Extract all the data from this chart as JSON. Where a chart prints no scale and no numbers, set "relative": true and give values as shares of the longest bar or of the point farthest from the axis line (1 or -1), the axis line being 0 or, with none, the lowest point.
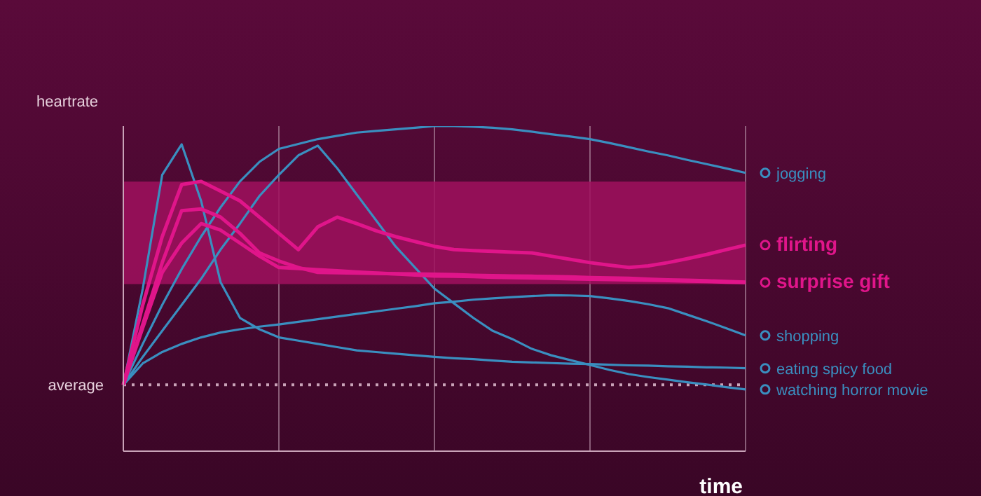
{
  "chart_data": {
    "type": "line",
    "relative": true,
    "xlabel": "time",
    "ylabel": "heartrate",
    "categories": [
      null,
      null,
      null,
      null,
      null,
      null,
      null,
      null,
      null,
      null,
      null,
      null,
      null,
      null,
      null,
      null,
      null,
      null,
      null,
      null,
      null,
      null,
      null,
      null,
      null,
      null,
      null,
      null,
      null,
      null,
      null,
      null,
      null
    ],
    "grid": "x",
    "legend": "right",
    "marker": "none",
    "ref_lines": [
      {
        "axis": "y",
        "value": 0.204,
        "label": "average",
        "color": "#c9a3b8",
        "line_style": "dotted"
      }
    ],
    "bands": [
      {
        "axis": "y",
        "from": 0.514,
        "to": 0.829,
        "color": "#a0105e"
      }
    ],
    "series": [
      {
        "name": "jogging",
        "color": "#3a8fc0",
        "values": [
          0.204,
          0.33,
          0.45,
          0.56,
          0.66,
          0.75,
          0.83,
          0.89,
          0.93,
          0.945,
          0.96,
          0.97,
          0.98,
          0.985,
          0.99,
          0.995,
          1,
          1,
          0.998,
          0.995,
          0.99,
          0.983,
          0.975,
          0.968,
          0.96,
          0.948,
          0.935,
          0.922,
          0.91,
          0.896,
          0.883,
          0.87,
          0.856
        ]
      },
      {
        "name": "shopping",
        "color": "#3a8fc0",
        "values": [
          0.204,
          0.27,
          0.305,
          0.33,
          0.35,
          0.365,
          0.375,
          0.383,
          0.39,
          0.398,
          0.406,
          0.414,
          0.422,
          0.43,
          0.438,
          0.446,
          0.455,
          0.46,
          0.466,
          0.47,
          0.474,
          0.477,
          0.48,
          0.479,
          0.477,
          0.47,
          0.462,
          0.452,
          0.44,
          0.42,
          0.4,
          0.378,
          0.356
        ]
      },
      {
        "name": "eating spicy food",
        "color": "#3a8fc0",
        "values": [
          0.204,
          0.5,
          0.85,
          0.944,
          0.77,
          0.52,
          0.41,
          0.375,
          0.35,
          0.34,
          0.33,
          0.32,
          0.31,
          0.305,
          0.3,
          0.295,
          0.29,
          0.286,
          0.283,
          0.279,
          0.275,
          0.273,
          0.271,
          0.269,
          0.268,
          0.266,
          0.264,
          0.263,
          0.261,
          0.26,
          0.258,
          0.257,
          0.255
        ]
      },
      {
        "name": "watching horror movie",
        "color": "#3a8fc0",
        "values": [
          0.204,
          0.29,
          0.37,
          0.45,
          0.53,
          0.62,
          0.7,
          0.785,
          0.85,
          0.91,
          0.94,
          0.87,
          0.79,
          0.71,
          0.63,
          0.565,
          0.5,
          0.455,
          0.41,
          0.37,
          0.345,
          0.315,
          0.295,
          0.28,
          0.265,
          0.25,
          0.237,
          0.228,
          0.22,
          0.212,
          0.205,
          0.197,
          0.19
        ]
      },
      {
        "color": "#e0158a",
        "values": [
          0.204,
          0.39,
          0.58,
          0.74,
          0.745,
          0.72,
          0.67,
          0.61,
          0.585,
          0.565,
          0.55,
          0.549,
          0.548,
          0.547,
          0.546,
          0.545,
          0.544,
          0.543,
          0.541,
          0.54,
          0.539,
          0.538,
          0.537,
          0.536,
          0.534,
          0.533,
          0.532,
          0.529,
          0.527,
          0.526,
          0.524,
          0.522,
          0.52
        ]
      },
      {
        "name": "flirting",
        "color": "#e0158a",
        "values": [
          0.204,
          0.45,
          0.66,
          0.82,
          0.83,
          0.8,
          0.77,
          0.72,
          0.67,
          0.62,
          0.69,
          0.72,
          0.7,
          0.678,
          0.66,
          0.645,
          0.63,
          0.62,
          0.617,
          0.615,
          0.612,
          0.61,
          0.6,
          0.59,
          0.58,
          0.572,
          0.565,
          0.57,
          0.58,
          0.592,
          0.605,
          0.62,
          0.634
        ]
      },
      {
        "name": "surprise gift",
        "color": "#e0158a",
        "values": [
          0.204,
          0.38,
          0.55,
          0.64,
          0.7,
          0.68,
          0.64,
          0.6,
          0.565,
          0.562,
          0.558,
          0.555,
          0.551,
          0.548,
          0.545,
          0.542,
          0.539,
          0.538,
          0.537,
          0.535,
          0.534,
          0.533,
          0.532,
          0.53,
          0.529,
          0.528,
          0.527,
          0.526,
          0.525,
          0.523,
          0.522,
          0.52,
          0.519
        ]
      }
    ]
  }
}
